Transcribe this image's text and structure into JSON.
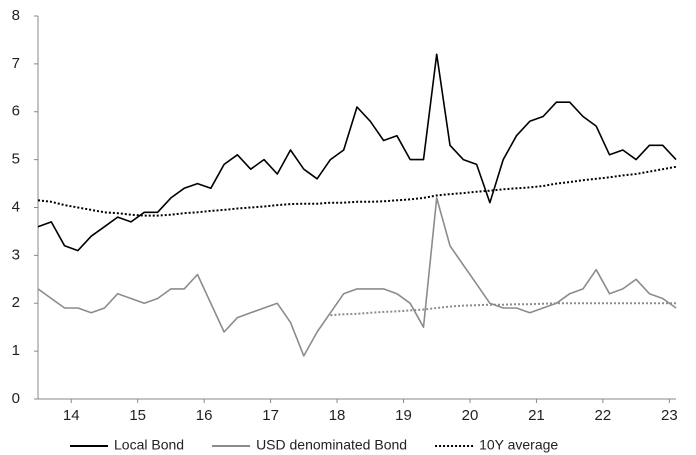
{
  "chart_data": {
    "type": "line",
    "x": [
      14.0,
      14.2,
      14.4,
      14.6,
      14.8,
      15.0,
      15.2,
      15.4,
      15.6,
      15.8,
      16.0,
      16.2,
      16.4,
      16.6,
      16.8,
      17.0,
      17.2,
      17.4,
      17.6,
      17.8,
      18.0,
      18.2,
      18.4,
      18.6,
      18.8,
      19.0,
      19.2,
      19.4,
      19.6,
      19.8,
      20.0,
      20.2,
      20.4,
      20.6,
      20.8,
      21.0,
      21.2,
      21.4,
      21.6,
      21.8,
      22.0,
      22.2,
      22.4,
      22.6,
      22.8,
      23.0,
      23.2,
      23.4,
      23.6
    ],
    "series": [
      {
        "name": "Local Bond",
        "color": "#000000",
        "dash": "solid",
        "values": [
          3.6,
          3.7,
          3.2,
          3.1,
          3.4,
          3.6,
          3.8,
          3.7,
          3.9,
          3.9,
          4.2,
          4.4,
          4.5,
          4.4,
          4.9,
          5.1,
          4.8,
          5.0,
          4.7,
          5.2,
          4.8,
          4.6,
          5.0,
          5.2,
          6.1,
          5.8,
          5.4,
          5.5,
          5.0,
          5.0,
          7.2,
          5.3,
          5.0,
          4.9,
          4.1,
          5.0,
          5.5,
          5.8,
          5.9,
          6.2,
          6.2,
          5.9,
          5.7,
          5.1,
          5.2,
          5.0,
          5.3,
          5.3,
          5.0
        ]
      },
      {
        "name": "USD denominated Bond",
        "color": "#8c8c8c",
        "dash": "solid",
        "values": [
          2.3,
          2.1,
          1.9,
          1.9,
          1.8,
          1.9,
          2.2,
          2.1,
          2.0,
          2.1,
          2.3,
          2.3,
          2.6,
          2.0,
          1.4,
          1.7,
          1.8,
          1.9,
          2.0,
          1.6,
          0.9,
          1.4,
          1.8,
          2.2,
          2.3,
          2.3,
          2.3,
          2.2,
          2.0,
          1.5,
          4.2,
          3.2,
          2.8,
          2.4,
          2.0,
          1.9,
          1.9,
          1.8,
          1.9,
          2.0,
          2.2,
          2.3,
          2.7,
          2.2,
          2.3,
          2.5,
          2.2,
          2.1,
          1.9
        ]
      },
      {
        "name": "10Y average",
        "color": "#000000",
        "dash": "dotted",
        "values": [
          4.15,
          4.12,
          4.05,
          4.0,
          3.95,
          3.9,
          3.88,
          3.85,
          3.83,
          3.83,
          3.85,
          3.88,
          3.9,
          3.93,
          3.95,
          3.98,
          4.0,
          4.02,
          4.05,
          4.07,
          4.08,
          4.08,
          4.1,
          4.1,
          4.12,
          4.12,
          4.13,
          4.15,
          4.17,
          4.2,
          4.25,
          4.28,
          4.3,
          4.33,
          4.35,
          4.38,
          4.4,
          4.42,
          4.45,
          4.5,
          4.53,
          4.57,
          4.6,
          4.63,
          4.67,
          4.7,
          4.75,
          4.8,
          4.85
        ]
      },
      {
        "color": "#8c8c8c",
        "dash": "dotted",
        "values": [
          null,
          null,
          null,
          null,
          null,
          null,
          null,
          null,
          null,
          null,
          null,
          null,
          null,
          null,
          null,
          null,
          null,
          null,
          null,
          null,
          null,
          null,
          1.75,
          1.77,
          1.78,
          1.8,
          1.82,
          1.83,
          1.85,
          1.87,
          1.9,
          1.93,
          1.95,
          1.96,
          1.97,
          1.97,
          1.98,
          1.98,
          1.99,
          2.0,
          2.0,
          2.0,
          2.0,
          2.0,
          2.0,
          2.0,
          2.0,
          2.0,
          2.0
        ]
      }
    ],
    "xlim": [
      14.0,
      23.6
    ],
    "xticks": [
      {
        "value": 14.5,
        "label": "14"
      },
      {
        "value": 15.5,
        "label": "15"
      },
      {
        "value": 16.5,
        "label": "16"
      },
      {
        "value": 17.5,
        "label": "17"
      },
      {
        "value": 18.5,
        "label": "18"
      },
      {
        "value": 19.5,
        "label": "19"
      },
      {
        "value": 20.5,
        "label": "20"
      },
      {
        "value": 21.5,
        "label": "21"
      },
      {
        "value": 22.5,
        "label": "22"
      },
      {
        "value": 23.5,
        "label": "23"
      }
    ],
    "ylim": [
      0,
      8
    ],
    "yticks": [
      0,
      1,
      2,
      3,
      4,
      5,
      6,
      7,
      8
    ],
    "grid": false,
    "legend": "bottom"
  }
}
